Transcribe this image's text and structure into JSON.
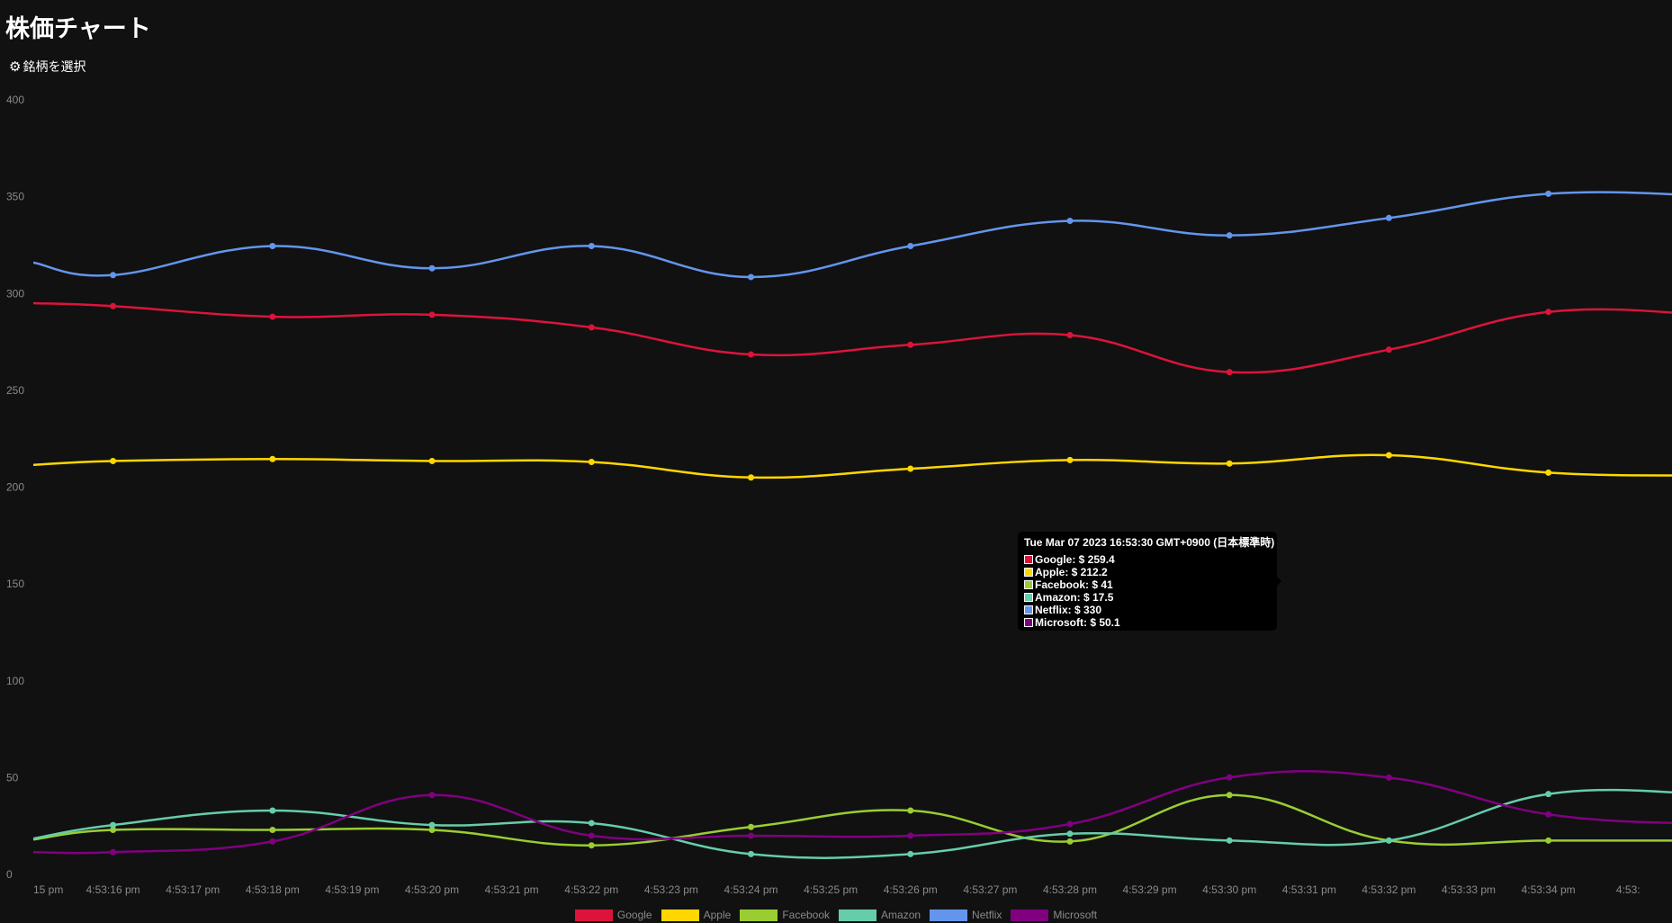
{
  "page": {
    "title": "株価チャート",
    "select_button_label": "銘柄を選択",
    "select_button_icon": "gear-icon"
  },
  "tooltip": {
    "title": "Tue Mar 07 2023 16:53:30 GMT+0900 (日本標準時)",
    "rows": [
      {
        "label": "Google: $ 259.4",
        "color": "#dc143c"
      },
      {
        "label": "Apple: $ 212.2",
        "color": "#ffd700"
      },
      {
        "label": "Facebook: $ 41",
        "color": "#9acd32"
      },
      {
        "label": "Amazon: $ 17.5",
        "color": "#66cdaa"
      },
      {
        "label": "Netflix: $ 330",
        "color": "#6495ed"
      },
      {
        "label": "Microsoft: $ 50.1",
        "color": "#800080"
      }
    ]
  },
  "chart_data": {
    "type": "line",
    "title": "",
    "xlabel": "",
    "ylabel": "",
    "ylim": [
      0,
      400
    ],
    "y_ticks": [
      0,
      50,
      100,
      150,
      200,
      250,
      300,
      350,
      400
    ],
    "grid": false,
    "legend_position": "bottom",
    "x_tick_labels": [
      "15 pm",
      "4:53:16 pm",
      "4:53:17 pm",
      "4:53:18 pm",
      "4:53:19 pm",
      "4:53:20 pm",
      "4:53:21 pm",
      "4:53:22 pm",
      "4:53:23 pm",
      "4:53:24 pm",
      "4:53:25 pm",
      "4:53:26 pm",
      "4:53:27 pm",
      "4:53:28 pm",
      "4:53:29 pm",
      "4:53:30 pm",
      "4:53:31 pm",
      "4:53:32 pm",
      "4:53:33 pm",
      "4:53:34 pm",
      "4:53:"
    ],
    "x_range_seconds": [
      15,
      35.55
    ],
    "series": [
      {
        "name": "Google",
        "color": "#dc143c",
        "x": [
          16,
          18,
          20,
          22,
          24,
          26,
          28,
          30,
          32,
          34
        ],
        "values": [
          293.5,
          288,
          289,
          282.5,
          268.5,
          273.5,
          278.5,
          259.4,
          271,
          290.5
        ],
        "edge_start": 295,
        "edge_end": 289
      },
      {
        "name": "Apple",
        "color": "#ffd700",
        "x": [
          16,
          18,
          20,
          22,
          24,
          26,
          28,
          30,
          32,
          34
        ],
        "values": [
          213.5,
          214.5,
          213.5,
          213,
          205,
          209.5,
          214,
          212.2,
          216.5,
          207.5
        ],
        "edge_start": 211.5,
        "edge_end": 206
      },
      {
        "name": "Facebook",
        "color": "#9acd32",
        "x": [
          16,
          18,
          20,
          22,
          24,
          26,
          28,
          30,
          32,
          34
        ],
        "values": [
          23,
          23,
          23,
          15,
          24.5,
          33,
          17,
          41,
          17.5,
          17.5
        ],
        "edge_start": 18,
        "edge_end": 17.5
      },
      {
        "name": "Amazon",
        "color": "#66cdaa",
        "x": [
          16,
          18,
          20,
          22,
          24,
          26,
          28,
          30,
          32,
          34
        ],
        "values": [
          25.5,
          33,
          25.5,
          26.5,
          10.5,
          10.5,
          21,
          17.5,
          17.5,
          41.5
        ],
        "edge_start": 18.5,
        "edge_end": 41.5
      },
      {
        "name": "Netflix",
        "color": "#6495ed",
        "x": [
          16,
          18,
          20,
          22,
          24,
          26,
          28,
          30,
          32,
          34
        ],
        "values": [
          309.5,
          324.5,
          313,
          324.5,
          308.5,
          324.5,
          337.5,
          330,
          339,
          351.5
        ],
        "edge_start": 316,
        "edge_end": 350.5
      },
      {
        "name": "Microsoft",
        "color": "#800080",
        "x": [
          16,
          18,
          20,
          22,
          24,
          26,
          28,
          30,
          32,
          34
        ],
        "values": [
          11.5,
          17,
          41,
          20,
          20,
          20,
          26,
          50.1,
          50,
          31
        ],
        "edge_start": 11.5,
        "edge_end": 26
      }
    ]
  }
}
